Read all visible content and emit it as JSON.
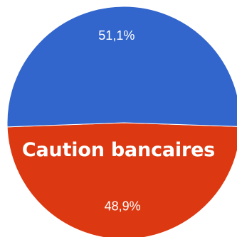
{
  "chart_data": {
    "type": "pie",
    "slices": [
      {
        "value": 48.9,
        "label": "48,9%",
        "color": "#dc3912"
      },
      {
        "value": 51.1,
        "label": "51,1%",
        "color": "#3366cc"
      }
    ],
    "annotation": "Caution bancaires",
    "legend": "none"
  },
  "colors": {
    "background": "#ffffff",
    "label_text": "#ffffff",
    "slice_border": "#ffffff"
  }
}
